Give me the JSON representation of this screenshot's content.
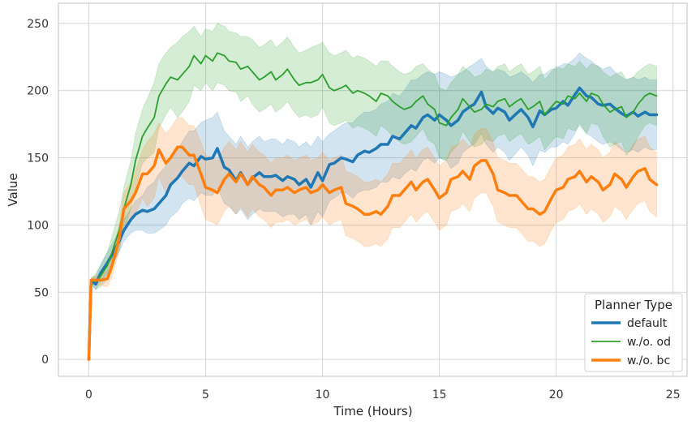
{
  "chart_data": {
    "type": "line",
    "xlabel": "Time (Hours)",
    "ylabel": "Value",
    "xlim": [
      -1.3,
      25.6
    ],
    "ylim": [
      -12.6,
      265
    ],
    "x_ticks": [
      0,
      5,
      10,
      15,
      20,
      25
    ],
    "y_ticks": [
      0,
      50,
      100,
      150,
      200,
      250
    ],
    "grid": true,
    "legend": {
      "title": "Planner Type",
      "position": "lower-right"
    },
    "series": [
      {
        "name": "default",
        "color": "#1f77b4",
        "linewidth": 3.5,
        "x": [
          0,
          0.1,
          0.3,
          0.5,
          0.8,
          1.0,
          1.3,
          1.5,
          1.8,
          2.0,
          2.3,
          2.5,
          2.8,
          3.0,
          3.3,
          3.5,
          3.8,
          4.0,
          4.3,
          4.5,
          4.8,
          5.0,
          5.3,
          5.5,
          5.8,
          6.0,
          6.3,
          6.5,
          6.8,
          7.0,
          7.3,
          7.5,
          7.8,
          8.0,
          8.3,
          8.5,
          8.8,
          9.0,
          9.3,
          9.5,
          9.8,
          10.0,
          10.3,
          10.5,
          10.8,
          11.0,
          11.3,
          11.5,
          11.8,
          12.0,
          12.3,
          12.5,
          12.8,
          13.0,
          13.3,
          13.5,
          13.8,
          14.0,
          14.3,
          14.5,
          14.8,
          15.0,
          15.3,
          15.5,
          15.8,
          16.0,
          16.3,
          16.5,
          16.8,
          17.0,
          17.3,
          17.5,
          17.8,
          18.0,
          18.3,
          18.5,
          18.8,
          19.0,
          19.3,
          19.5,
          19.8,
          20.0,
          20.3,
          20.5,
          20.8,
          21.0,
          21.3,
          21.5,
          21.8,
          22.0,
          22.3,
          22.5,
          22.8,
          23.0,
          23.3,
          23.5,
          23.8,
          24.0,
          24.3
        ],
        "y": [
          0,
          58,
          56,
          64,
          72,
          78,
          88,
          96,
          104,
          108,
          111,
          110,
          112,
          116,
          122,
          130,
          135,
          140,
          146,
          144,
          151,
          149,
          150,
          157,
          143,
          141,
          133,
          139,
          130,
          135,
          139,
          136,
          136,
          137,
          133,
          136,
          134,
          130,
          134,
          128,
          139,
          133,
          145,
          146,
          150,
          149,
          147,
          152,
          155,
          154,
          157,
          160,
          160,
          166,
          164,
          168,
          174,
          172,
          180,
          182,
          178,
          182,
          178,
          174,
          178,
          184,
          188,
          190,
          199,
          188,
          183,
          187,
          184,
          178,
          183,
          186,
          180,
          173,
          185,
          182,
          186,
          187,
          192,
          189,
          197,
          202,
          196,
          195,
          190,
          189,
          190,
          187,
          183,
          181,
          184,
          181,
          184,
          182,
          182
        ],
        "band_upper": [
          0,
          60,
          62,
          70,
          80,
          86,
          96,
          104,
          112,
          118,
          122,
          128,
          132,
          138,
          144,
          152,
          156,
          162,
          170,
          170,
          176,
          178,
          180,
          184,
          170,
          166,
          160,
          166,
          158,
          162,
          166,
          162,
          164,
          164,
          160,
          164,
          162,
          158,
          162,
          158,
          166,
          162,
          168,
          170,
          174,
          176,
          176,
          180,
          184,
          184,
          186,
          190,
          192,
          198,
          196,
          200,
          208,
          208,
          212,
          214,
          212,
          214,
          212,
          210,
          212,
          214,
          218,
          220,
          224,
          218,
          214,
          216,
          214,
          210,
          212,
          214,
          210,
          206,
          212,
          212,
          216,
          216,
          220,
          220,
          224,
          228,
          224,
          222,
          218,
          216,
          218,
          214,
          210,
          208,
          210,
          208,
          210,
          208,
          208
        ],
        "band_lower": [
          0,
          56,
          52,
          58,
          64,
          70,
          80,
          88,
          94,
          96,
          96,
          94,
          94,
          96,
          100,
          106,
          110,
          116,
          120,
          118,
          124,
          122,
          122,
          128,
          116,
          114,
          108,
          112,
          104,
          108,
          112,
          110,
          110,
          110,
          106,
          108,
          108,
          104,
          108,
          100,
          110,
          106,
          118,
          120,
          124,
          124,
          120,
          124,
          126,
          126,
          128,
          132,
          132,
          136,
          134,
          138,
          142,
          140,
          148,
          150,
          146,
          150,
          148,
          142,
          146,
          154,
          158,
          160,
          168,
          160,
          154,
          158,
          154,
          148,
          154,
          158,
          152,
          144,
          156,
          154,
          158,
          158,
          162,
          160,
          168,
          176,
          168,
          166,
          162,
          160,
          162,
          160,
          156,
          154,
          156,
          154,
          158,
          156,
          156
        ]
      },
      {
        "name": "w./o. od",
        "color": "#2ca02c",
        "linewidth": 1.8,
        "x": [
          0,
          0.1,
          0.3,
          0.5,
          0.8,
          1.0,
          1.3,
          1.5,
          1.8,
          2.0,
          2.3,
          2.5,
          2.8,
          3.0,
          3.3,
          3.5,
          3.8,
          4.0,
          4.3,
          4.5,
          4.8,
          5.0,
          5.3,
          5.5,
          5.8,
          6.0,
          6.3,
          6.5,
          6.8,
          7.0,
          7.3,
          7.5,
          7.8,
          8.0,
          8.3,
          8.5,
          8.8,
          9.0,
          9.3,
          9.5,
          9.8,
          10.0,
          10.3,
          10.5,
          10.8,
          11.0,
          11.3,
          11.5,
          11.8,
          12.0,
          12.3,
          12.5,
          12.8,
          13.0,
          13.3,
          13.5,
          13.8,
          14.0,
          14.3,
          14.5,
          14.8,
          15.0,
          15.3,
          15.5,
          15.8,
          16.0,
          16.3,
          16.5,
          16.8,
          17.0,
          17.3,
          17.5,
          17.8,
          18.0,
          18.3,
          18.5,
          18.8,
          19.0,
          19.3,
          19.5,
          19.8,
          20.0,
          20.3,
          20.5,
          20.8,
          21.0,
          21.3,
          21.5,
          21.8,
          22.0,
          22.3,
          22.5,
          22.8,
          23.0,
          23.3,
          23.5,
          23.8,
          24.0,
          24.3
        ],
        "y": [
          0,
          58,
          58,
          62,
          70,
          80,
          96,
          112,
          130,
          148,
          166,
          172,
          180,
          196,
          205,
          210,
          208,
          212,
          218,
          226,
          220,
          226,
          222,
          228,
          226,
          222,
          221,
          216,
          218,
          214,
          208,
          210,
          214,
          208,
          212,
          216,
          208,
          204,
          206,
          206,
          208,
          212,
          202,
          200,
          202,
          204,
          198,
          200,
          198,
          196,
          192,
          198,
          196,
          192,
          188,
          186,
          188,
          192,
          196,
          190,
          186,
          176,
          174,
          180,
          186,
          194,
          188,
          184,
          186,
          190,
          188,
          192,
          194,
          188,
          192,
          194,
          186,
          188,
          192,
          182,
          188,
          192,
          190,
          196,
          194,
          198,
          192,
          198,
          196,
          190,
          184,
          186,
          188,
          180,
          184,
          190,
          196,
          198,
          196
        ],
        "band_upper": [
          0,
          60,
          64,
          70,
          80,
          92,
          110,
          128,
          148,
          168,
          186,
          194,
          206,
          220,
          228,
          232,
          236,
          240,
          244,
          248,
          240,
          246,
          244,
          250,
          248,
          244,
          243,
          240,
          240,
          238,
          232,
          234,
          238,
          232,
          236,
          240,
          232,
          228,
          230,
          232,
          234,
          236,
          228,
          226,
          228,
          230,
          224,
          226,
          224,
          222,
          218,
          222,
          222,
          218,
          214,
          212,
          214,
          218,
          220,
          216,
          212,
          202,
          200,
          206,
          212,
          218,
          214,
          210,
          212,
          216,
          214,
          218,
          220,
          214,
          218,
          220,
          212,
          214,
          218,
          208,
          214,
          218,
          216,
          220,
          218,
          222,
          216,
          220,
          218,
          214,
          210,
          212,
          214,
          208,
          210,
          214,
          218,
          220,
          218
        ],
        "band_lower": [
          0,
          56,
          52,
          54,
          60,
          68,
          82,
          96,
          112,
          128,
          146,
          150,
          154,
          172,
          182,
          188,
          180,
          184,
          192,
          204,
          200,
          206,
          200,
          206,
          204,
          200,
          199,
          192,
          196,
          190,
          184,
          186,
          190,
          184,
          188,
          192,
          184,
          180,
          182,
          180,
          182,
          188,
          176,
          174,
          176,
          178,
          172,
          174,
          172,
          170,
          166,
          174,
          170,
          166,
          162,
          160,
          162,
          166,
          172,
          164,
          160,
          150,
          148,
          154,
          160,
          170,
          162,
          158,
          160,
          164,
          162,
          166,
          168,
          162,
          166,
          168,
          160,
          162,
          166,
          156,
          162,
          166,
          164,
          172,
          170,
          174,
          168,
          176,
          174,
          166,
          158,
          160,
          162,
          152,
          158,
          166,
          174,
          176,
          174
        ]
      },
      {
        "name": "w./o. bc",
        "color": "#ff7f0e",
        "linewidth": 3.5,
        "x": [
          0,
          0.1,
          0.3,
          0.5,
          0.8,
          1.0,
          1.3,
          1.5,
          1.8,
          2.0,
          2.3,
          2.5,
          2.8,
          3.0,
          3.3,
          3.5,
          3.8,
          4.0,
          4.3,
          4.5,
          4.8,
          5.0,
          5.3,
          5.5,
          5.8,
          6.0,
          6.3,
          6.5,
          6.8,
          7.0,
          7.3,
          7.5,
          7.8,
          8.0,
          8.3,
          8.5,
          8.8,
          9.0,
          9.3,
          9.5,
          9.8,
          10.0,
          10.3,
          10.5,
          10.8,
          11.0,
          11.3,
          11.5,
          11.8,
          12.0,
          12.3,
          12.5,
          12.8,
          13.0,
          13.3,
          13.5,
          13.8,
          14.0,
          14.3,
          14.5,
          14.8,
          15.0,
          15.3,
          15.5,
          15.8,
          16.0,
          16.3,
          16.5,
          16.8,
          17.0,
          17.3,
          17.5,
          17.8,
          18.0,
          18.3,
          18.5,
          18.8,
          19.0,
          19.3,
          19.5,
          19.8,
          20.0,
          20.3,
          20.5,
          20.8,
          21.0,
          21.3,
          21.5,
          21.8,
          22.0,
          22.3,
          22.5,
          22.8,
          23.0,
          23.3,
          23.5,
          23.8,
          24.0,
          24.3
        ],
        "y": [
          0,
          59,
          59,
          59,
          60,
          70,
          90,
          112,
          118,
          124,
          138,
          138,
          144,
          156,
          146,
          150,
          158,
          158,
          152,
          152,
          138,
          128,
          126,
          124,
          134,
          138,
          132,
          138,
          130,
          136,
          130,
          128,
          122,
          126,
          126,
          128,
          124,
          126,
          128,
          124,
          126,
          130,
          124,
          126,
          128,
          116,
          114,
          112,
          108,
          108,
          110,
          108,
          114,
          122,
          122,
          126,
          132,
          126,
          132,
          134,
          126,
          120,
          124,
          134,
          136,
          140,
          134,
          144,
          148,
          148,
          138,
          126,
          124,
          122,
          122,
          118,
          112,
          112,
          108,
          110,
          120,
          126,
          128,
          134,
          136,
          140,
          132,
          136,
          132,
          126,
          130,
          138,
          134,
          128,
          136,
          140,
          142,
          134,
          130
        ],
        "band_upper": [
          0,
          61,
          62,
          63,
          66,
          78,
          100,
          124,
          132,
          140,
          156,
          162,
          168,
          176,
          168,
          172,
          180,
          180,
          174,
          174,
          162,
          152,
          150,
          148,
          158,
          162,
          156,
          162,
          154,
          160,
          154,
          152,
          146,
          150,
          150,
          152,
          148,
          150,
          152,
          148,
          150,
          154,
          148,
          150,
          152,
          140,
          138,
          136,
          132,
          132,
          134,
          132,
          138,
          146,
          146,
          150,
          156,
          150,
          156,
          158,
          150,
          144,
          148,
          158,
          160,
          164,
          158,
          168,
          172,
          172,
          162,
          150,
          148,
          146,
          146,
          142,
          136,
          136,
          132,
          134,
          144,
          150,
          152,
          158,
          160,
          164,
          156,
          160,
          156,
          150,
          154,
          162,
          158,
          152,
          160,
          164,
          166,
          158,
          154
        ],
        "band_lower": [
          0,
          57,
          56,
          55,
          54,
          62,
          80,
          100,
          104,
          108,
          120,
          114,
          120,
          136,
          124,
          128,
          136,
          136,
          130,
          130,
          114,
          104,
          102,
          100,
          110,
          114,
          108,
          114,
          106,
          112,
          106,
          104,
          98,
          102,
          102,
          104,
          100,
          102,
          104,
          100,
          102,
          106,
          100,
          102,
          104,
          92,
          90,
          88,
          84,
          84,
          86,
          84,
          90,
          98,
          98,
          102,
          108,
          102,
          108,
          110,
          102,
          96,
          100,
          110,
          112,
          116,
          110,
          120,
          124,
          124,
          114,
          102,
          100,
          98,
          98,
          94,
          88,
          88,
          84,
          86,
          96,
          102,
          104,
          110,
          112,
          116,
          108,
          112,
          108,
          102,
          106,
          114,
          110,
          104,
          112,
          116,
          118,
          110,
          106
        ]
      }
    ]
  }
}
